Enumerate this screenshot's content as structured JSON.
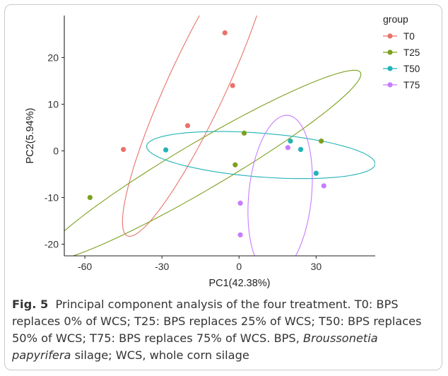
{
  "chart_data": {
    "type": "scatter",
    "xlabel": "PC1(42.38%)",
    "ylabel": "PC2(5.94%)",
    "xlim": [
      -68,
      53
    ],
    "ylim": [
      -22.5,
      29
    ],
    "xticks": [
      -60,
      -30,
      0,
      30
    ],
    "yticks": [
      -20,
      -10,
      0,
      10,
      20
    ],
    "grid": false,
    "legend_title": "group",
    "legend_position": "top-right",
    "series": [
      {
        "name": "T0",
        "color": "#e8736c",
        "points": [
          [
            -5.5,
            25.3
          ],
          [
            -2.5,
            14.0
          ],
          [
            -20,
            5.4
          ],
          [
            -45,
            0.3
          ]
        ],
        "ellipse": {
          "cx": -16,
          "cy": 14.5,
          "rx": 43,
          "ry": 9.5,
          "angle": 48.5
        }
      },
      {
        "name": "T25",
        "color": "#7ca01e",
        "points": [
          [
            -58,
            -10
          ],
          [
            2,
            3.8
          ],
          [
            -1.5,
            -3.0
          ],
          [
            32,
            2.1
          ]
        ],
        "ellipse": {
          "cx": -14.5,
          "cy": -3.2,
          "rx": 65,
          "ry": 5.6,
          "angle": 17.7
        }
      },
      {
        "name": "T50",
        "color": "#22b3b7",
        "points": [
          [
            -28.5,
            0.2
          ],
          [
            20,
            2.1
          ],
          [
            24,
            0.3
          ],
          [
            30,
            -4.8
          ]
        ],
        "ellipse": {
          "cx": 8.5,
          "cy": -0.9,
          "rx": 44.5,
          "ry": 4.7,
          "angle": -2.4
        }
      },
      {
        "name": "T75",
        "color": "#c77cff",
        "points": [
          [
            19,
            0.7
          ],
          [
            33,
            -7.5
          ],
          [
            0.5,
            -11.2
          ],
          [
            0.5,
            -18
          ]
        ],
        "ellipse": {
          "cx": 16,
          "cy": -9.5,
          "rx": 17.5,
          "ry": 12,
          "angle": 73.5
        }
      }
    ]
  },
  "caption": {
    "label": "Fig. 5",
    "text_before_italic": "Principal component analysis of the four treatment. T0: BPS replaces 0% of WCS; T25: BPS replaces 25% of WCS; T50: BPS replaces 50% of WCS; T75: BPS replaces 75% of WCS. BPS,",
    "italic": "Broussonetia papyrifera",
    "text_after_italic": "silage; WCS, whole corn silage"
  }
}
